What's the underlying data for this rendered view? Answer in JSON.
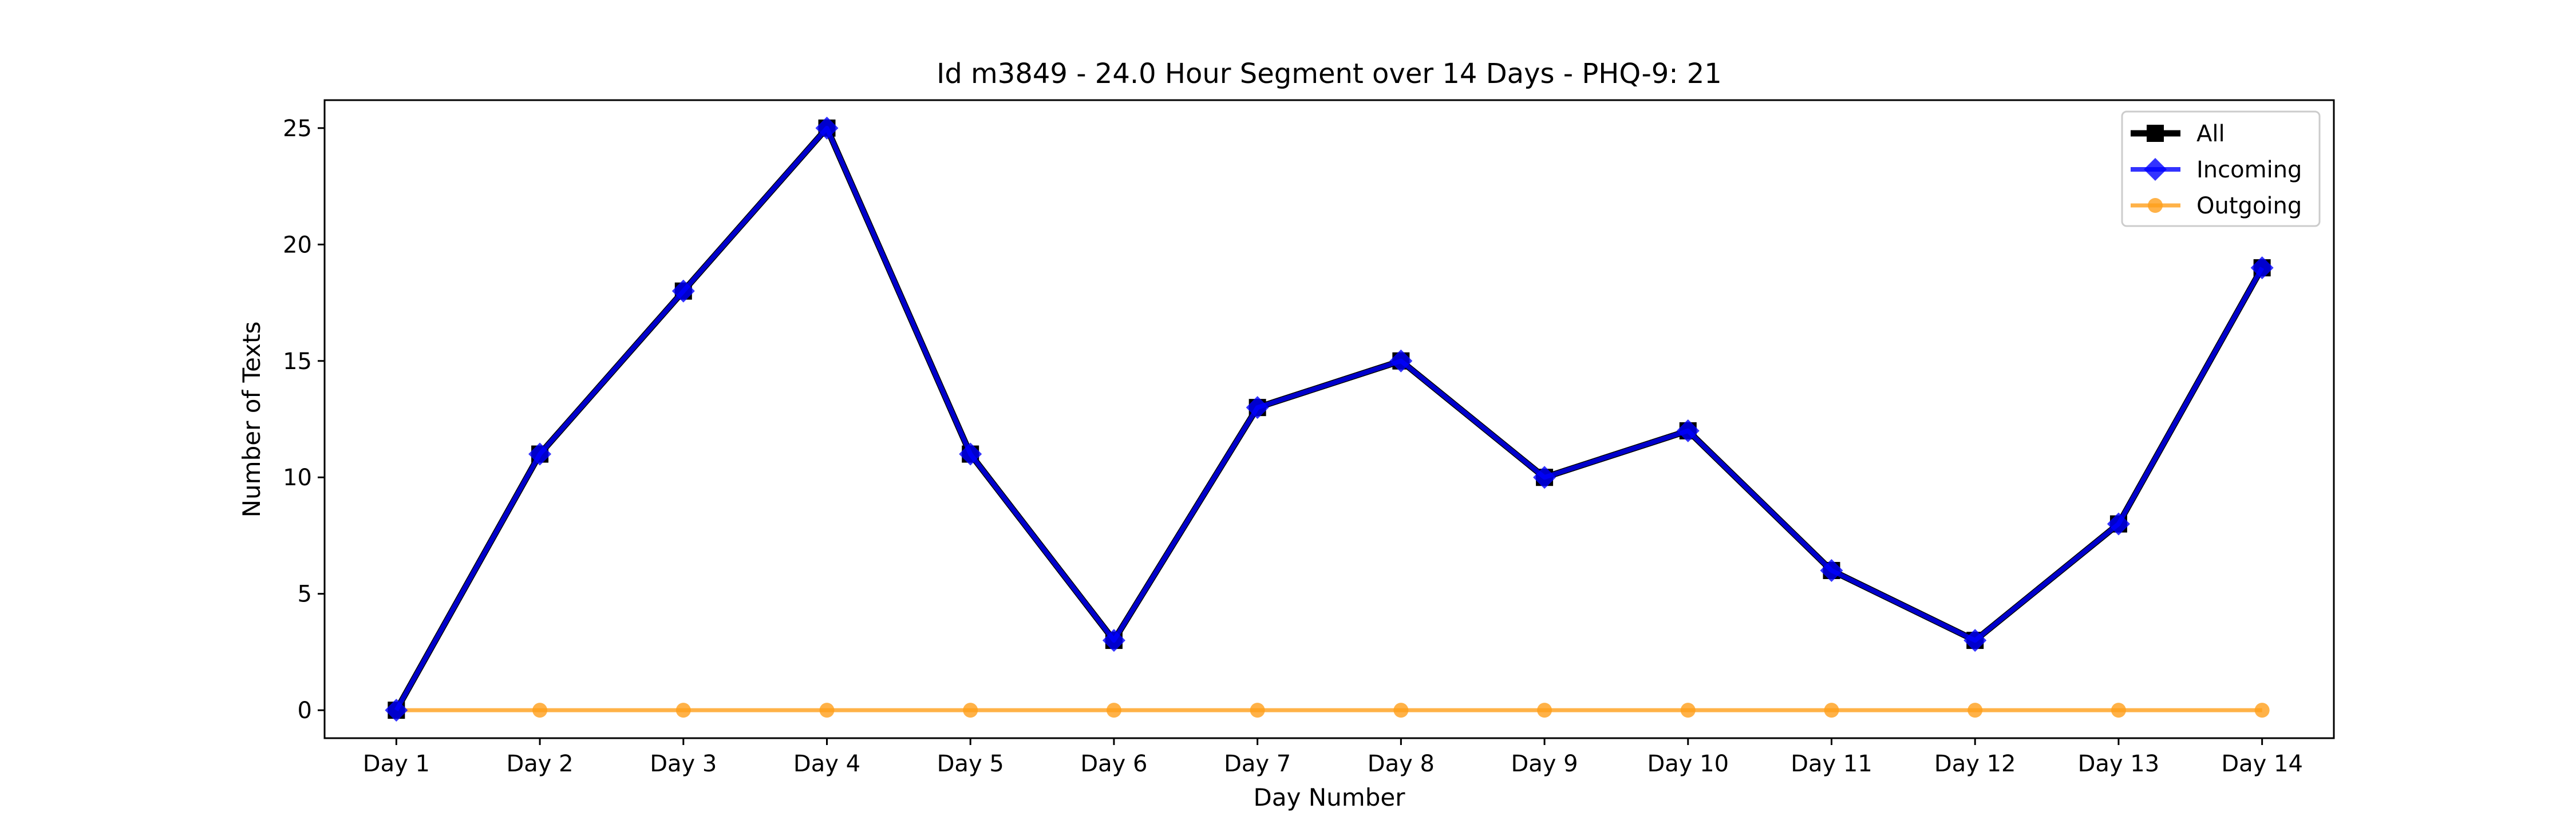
{
  "chart_data": {
    "type": "line",
    "title": "Id m3849 - 24.0 Hour Segment over 14 Days - PHQ-9: 21",
    "xlabel": "Day Number",
    "ylabel": "Number of Texts",
    "categories": [
      "Day 1",
      "Day 2",
      "Day 3",
      "Day 4",
      "Day 5",
      "Day 6",
      "Day 7",
      "Day 8",
      "Day 9",
      "Day 10",
      "Day 11",
      "Day 12",
      "Day 13",
      "Day 14"
    ],
    "ylim": [
      -1.2,
      26.2
    ],
    "yticks": [
      0,
      5,
      10,
      15,
      20,
      25
    ],
    "grid": false,
    "legend_position": "top-right",
    "series": [
      {
        "name": "All",
        "color": "#000000",
        "marker": "square",
        "values": [
          0,
          11,
          18,
          25,
          11,
          3,
          13,
          15,
          10,
          12,
          6,
          3,
          8,
          19
        ]
      },
      {
        "name": "Incoming",
        "color": "#0000ff",
        "marker": "diamond",
        "values": [
          0,
          11,
          18,
          25,
          11,
          3,
          13,
          15,
          10,
          12,
          6,
          3,
          8,
          19
        ]
      },
      {
        "name": "Outgoing",
        "color": "#ff9f1a",
        "marker": "circle",
        "values": [
          0,
          0,
          0,
          0,
          0,
          0,
          0,
          0,
          0,
          0,
          0,
          0,
          0,
          0
        ]
      }
    ]
  }
}
